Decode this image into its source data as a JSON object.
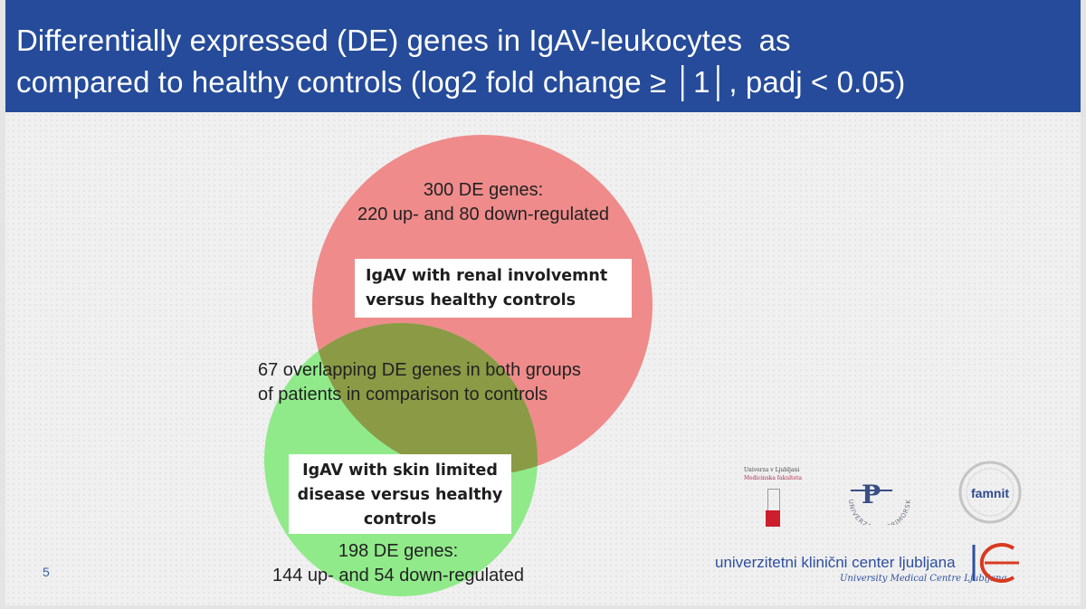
{
  "slide": {
    "title_line1": "Differentially expressed (DE) genes in IgAV-leukocytes  as",
    "title_line2": "compared to healthy controls (log2 fold change ≥ │1│, padj < 0.05)",
    "page_number": "5"
  },
  "venn": {
    "renal": {
      "count_line1": "300 DE genes:",
      "count_line2": "220 up- and 80 down-regulated",
      "label_line1": "IgAV with renal involvemnt",
      "label_line2": "versus healthy controls",
      "color": "#ef8b8b"
    },
    "skin": {
      "label_line1": "IgAV with skin limited",
      "label_line2": "disease versus healthy",
      "label_line3": "controls",
      "count_line1": "198 DE genes:",
      "count_line2": "144 up- and 54 down-regulated",
      "color": "#90ea8a"
    },
    "overlap": {
      "text_line1": "67 overlapping DE genes in both groups",
      "text_line2": "of patients in comparison to controls",
      "color": "#8a9a45"
    }
  },
  "logos": {
    "ul_line1": "Univerza v Ljubljani",
    "ul_line2": "Medicinska fakulteta",
    "up_letter": "P",
    "up_arc": "UNIVERZA NA PRIMORSKEM",
    "famnit": "famnit",
    "ukc_name": "univerzitetni klinični center ljubljana",
    "ukc_sub": "University Medical Centre Ljubljana"
  }
}
